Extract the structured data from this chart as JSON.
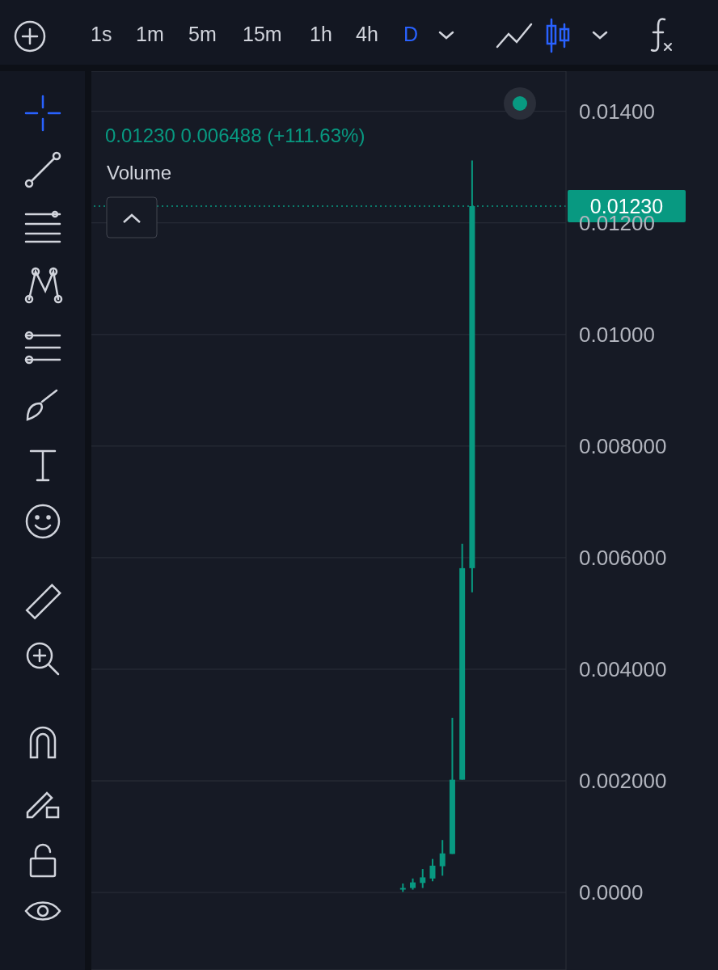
{
  "chart_data": {
    "type": "candlestick",
    "categories": [
      null,
      null,
      null,
      null,
      null,
      null,
      null,
      null,
      null,
      null,
      null,
      null,
      null,
      null,
      null,
      null,
      null,
      null,
      null,
      null,
      null,
      null,
      null,
      null,
      null,
      null,
      null,
      null,
      null,
      null,
      null,
      null,
      null,
      null,
      null,
      null,
      null,
      null,
      null,
      null,
      null,
      null,
      null,
      null,
      null,
      null,
      null,
      null
    ],
    "ohlc": [
      null,
      null,
      null,
      null,
      null,
      null,
      null,
      null,
      null,
      null,
      null,
      null,
      null,
      null,
      null,
      null,
      null,
      null,
      null,
      null,
      null,
      null,
      null,
      null,
      null,
      null,
      null,
      null,
      null,
      null,
      null,
      [
        7e-05,
        0.00016,
        1e-05,
        8e-05
      ],
      [
        8e-05,
        0.00025,
        5e-05,
        0.00018
      ],
      [
        0.00017,
        0.00042,
        8e-05,
        0.00027
      ],
      [
        0.00025,
        0.0006,
        0.0002,
        0.00048
      ],
      [
        0.00047,
        0.00094,
        0.0003,
        0.0007
      ],
      [
        0.00069,
        0.00313,
        0.00069,
        0.00202
      ],
      [
        0.00202,
        0.00625,
        0.00202,
        0.005812
      ],
      [
        0.005812,
        0.01312,
        0.00538,
        0.0123
      ],
      null,
      null,
      null,
      null,
      null,
      null,
      null,
      null,
      null
    ],
    "color": "#089981",
    "ylim": [
      -0.00139,
      0.01472
    ],
    "yticks": [
      {
        "value": 0,
        "label": "0.0000"
      },
      {
        "value": 0.002,
        "label": "0.002000"
      },
      {
        "value": 0.004,
        "label": "0.004000"
      },
      {
        "value": 0.006,
        "label": "0.006000"
      },
      {
        "value": 0.008,
        "label": "0.008000"
      },
      {
        "value": 0.01,
        "label": "0.01000"
      },
      {
        "value": 0.012,
        "label": "0.01200"
      },
      {
        "value": 0.014,
        "label": "0.01400"
      }
    ],
    "grid": "y",
    "tick_labels": "y",
    "ref_lines": [
      {
        "axis": "y",
        "value": 0.0123,
        "label": "0.01230",
        "color": "#089981",
        "line_style": "dotted"
      }
    ],
    "annotations": [
      "0.01230 0.006488 (+111.63%)",
      "Volume",
      "1s",
      "1m",
      "5m",
      "15m",
      "1h",
      "4h",
      "D"
    ]
  }
}
